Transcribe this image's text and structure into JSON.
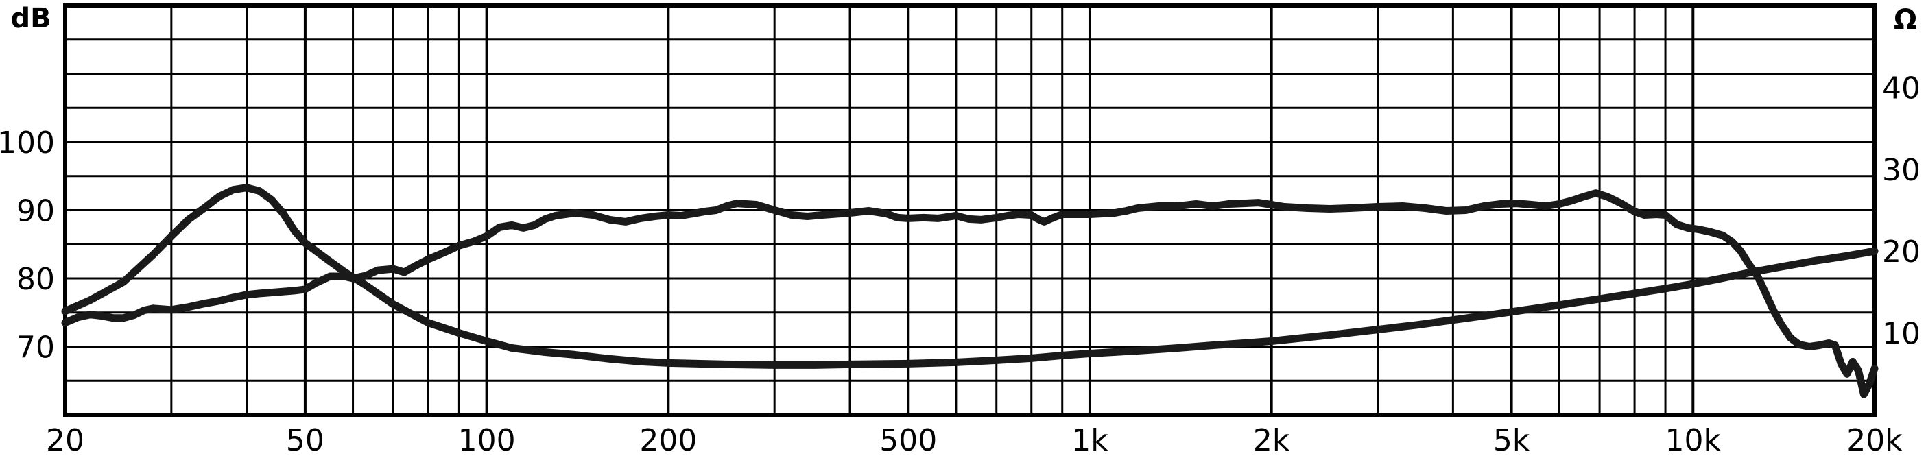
{
  "chart_data": {
    "type": "line",
    "title": "",
    "x_scale": "log",
    "xlim": [
      20,
      20000
    ],
    "ylim_left": [
      60,
      120
    ],
    "ylim_right": [
      0,
      50
    ],
    "ylabel_left": "dB",
    "ylabel_right": "Ω",
    "grid": true,
    "x_ticks": [
      {
        "value": 20,
        "label": "20"
      },
      {
        "value": 50,
        "label": "50"
      },
      {
        "value": 100,
        "label": "100"
      },
      {
        "value": 200,
        "label": "200"
      },
      {
        "value": 500,
        "label": "500"
      },
      {
        "value": 1000,
        "label": "1k"
      },
      {
        "value": 2000,
        "label": "2k"
      },
      {
        "value": 5000,
        "label": "5k"
      },
      {
        "value": 10000,
        "label": "10k"
      },
      {
        "value": 20000,
        "label": "20k"
      }
    ],
    "y_ticks_left": [
      {
        "value": 70,
        "label": "70"
      },
      {
        "value": 80,
        "label": "80"
      },
      {
        "value": 90,
        "label": "90"
      },
      {
        "value": 100,
        "label": "100"
      }
    ],
    "y_ticks_right": [
      {
        "value": 10,
        "label": "10"
      },
      {
        "value": 20,
        "label": "20"
      },
      {
        "value": 30,
        "label": "30"
      },
      {
        "value": 40,
        "label": "40"
      }
    ],
    "series": [
      {
        "axis": "left",
        "points": [
          [
            20,
            75.2
          ],
          [
            22,
            76.8
          ],
          [
            25,
            79.5
          ],
          [
            28,
            83.5
          ],
          [
            30,
            86.2
          ],
          [
            32,
            88.6
          ],
          [
            34,
            90.3
          ],
          [
            36,
            92.0
          ],
          [
            38,
            93.0
          ],
          [
            40,
            93.3
          ],
          [
            42,
            92.8
          ],
          [
            44,
            91.5
          ],
          [
            46,
            89.5
          ],
          [
            48,
            87.0
          ],
          [
            50,
            85.2
          ],
          [
            54,
            83.0
          ],
          [
            58,
            81.0
          ],
          [
            63,
            79.0
          ],
          [
            70,
            76.2
          ],
          [
            80,
            73.5
          ],
          [
            90,
            72.0
          ],
          [
            100,
            70.8
          ],
          [
            110,
            69.8
          ],
          [
            125,
            69.2
          ],
          [
            140,
            68.8
          ],
          [
            160,
            68.2
          ],
          [
            180,
            67.8
          ],
          [
            200,
            67.6
          ],
          [
            250,
            67.4
          ],
          [
            300,
            67.3
          ],
          [
            350,
            67.3
          ],
          [
            400,
            67.4
          ],
          [
            500,
            67.5
          ],
          [
            600,
            67.7
          ],
          [
            700,
            68.0
          ],
          [
            800,
            68.3
          ],
          [
            900,
            68.7
          ],
          [
            1000,
            69.0
          ],
          [
            1200,
            69.4
          ],
          [
            1400,
            69.8
          ],
          [
            1600,
            70.2
          ],
          [
            1800,
            70.5
          ],
          [
            2000,
            70.8
          ],
          [
            2500,
            71.7
          ],
          [
            3000,
            72.5
          ],
          [
            3500,
            73.2
          ],
          [
            4000,
            73.9
          ],
          [
            5000,
            75.1
          ],
          [
            6000,
            76.1
          ],
          [
            7000,
            77.0
          ],
          [
            8000,
            77.8
          ],
          [
            9000,
            78.5
          ],
          [
            10000,
            79.2
          ],
          [
            11000,
            79.9
          ],
          [
            12500,
            80.9
          ],
          [
            14000,
            81.7
          ],
          [
            16000,
            82.6
          ],
          [
            18000,
            83.3
          ],
          [
            20000,
            84.0
          ]
        ]
      },
      {
        "axis": "left",
        "points": [
          [
            20,
            73.5
          ],
          [
            21,
            74.3
          ],
          [
            22,
            74.7
          ],
          [
            23,
            74.5
          ],
          [
            24,
            74.2
          ],
          [
            25,
            74.2
          ],
          [
            26,
            74.6
          ],
          [
            27,
            75.3
          ],
          [
            28,
            75.6
          ],
          [
            30,
            75.4
          ],
          [
            32,
            75.8
          ],
          [
            34,
            76.3
          ],
          [
            36,
            76.7
          ],
          [
            38,
            77.2
          ],
          [
            40,
            77.6
          ],
          [
            42,
            77.8
          ],
          [
            45,
            78.0
          ],
          [
            48,
            78.2
          ],
          [
            50,
            78.4
          ],
          [
            52,
            79.3
          ],
          [
            55,
            80.3
          ],
          [
            58,
            80.3
          ],
          [
            60,
            80.0
          ],
          [
            63,
            80.4
          ],
          [
            66,
            81.2
          ],
          [
            70,
            81.4
          ],
          [
            73,
            80.9
          ],
          [
            76,
            81.8
          ],
          [
            80,
            82.8
          ],
          [
            85,
            83.8
          ],
          [
            90,
            84.8
          ],
          [
            95,
            85.4
          ],
          [
            100,
            86.2
          ],
          [
            105,
            87.5
          ],
          [
            110,
            87.8
          ],
          [
            115,
            87.4
          ],
          [
            120,
            87.8
          ],
          [
            125,
            88.7
          ],
          [
            130,
            89.2
          ],
          [
            140,
            89.6
          ],
          [
            150,
            89.3
          ],
          [
            160,
            88.6
          ],
          [
            170,
            88.3
          ],
          [
            180,
            88.8
          ],
          [
            190,
            89.1
          ],
          [
            200,
            89.3
          ],
          [
            210,
            89.2
          ],
          [
            220,
            89.5
          ],
          [
            230,
            89.8
          ],
          [
            240,
            90.0
          ],
          [
            250,
            90.6
          ],
          [
            260,
            91.0
          ],
          [
            280,
            90.8
          ],
          [
            300,
            90.0
          ],
          [
            320,
            89.3
          ],
          [
            340,
            89.1
          ],
          [
            360,
            89.3
          ],
          [
            400,
            89.6
          ],
          [
            430,
            89.9
          ],
          [
            460,
            89.5
          ],
          [
            480,
            88.9
          ],
          [
            500,
            88.8
          ],
          [
            530,
            88.9
          ],
          [
            560,
            88.8
          ],
          [
            600,
            89.2
          ],
          [
            630,
            88.7
          ],
          [
            660,
            88.6
          ],
          [
            700,
            88.9
          ],
          [
            730,
            89.2
          ],
          [
            760,
            89.4
          ],
          [
            800,
            89.3
          ],
          [
            820,
            88.7
          ],
          [
            840,
            88.3
          ],
          [
            870,
            88.9
          ],
          [
            900,
            89.4
          ],
          [
            950,
            89.4
          ],
          [
            1000,
            89.4
          ],
          [
            1050,
            89.5
          ],
          [
            1100,
            89.6
          ],
          [
            1150,
            89.9
          ],
          [
            1200,
            90.3
          ],
          [
            1300,
            90.6
          ],
          [
            1400,
            90.6
          ],
          [
            1500,
            90.9
          ],
          [
            1600,
            90.6
          ],
          [
            1700,
            90.9
          ],
          [
            1800,
            91.0
          ],
          [
            1900,
            91.1
          ],
          [
            2000,
            90.8
          ],
          [
            2100,
            90.5
          ],
          [
            2300,
            90.3
          ],
          [
            2500,
            90.2
          ],
          [
            2700,
            90.3
          ],
          [
            3000,
            90.5
          ],
          [
            3300,
            90.6
          ],
          [
            3600,
            90.3
          ],
          [
            3900,
            89.9
          ],
          [
            4200,
            90.0
          ],
          [
            4500,
            90.6
          ],
          [
            4800,
            90.9
          ],
          [
            5100,
            91.0
          ],
          [
            5400,
            90.8
          ],
          [
            5700,
            90.6
          ],
          [
            6000,
            90.9
          ],
          [
            6300,
            91.4
          ],
          [
            6600,
            92.0
          ],
          [
            6900,
            92.5
          ],
          [
            7200,
            92.0
          ],
          [
            7600,
            91.0
          ],
          [
            8000,
            89.8
          ],
          [
            8300,
            89.3
          ],
          [
            8700,
            89.4
          ],
          [
            9000,
            89.3
          ],
          [
            9400,
            87.9
          ],
          [
            9800,
            87.4
          ],
          [
            10200,
            87.2
          ],
          [
            10700,
            86.8
          ],
          [
            11200,
            86.3
          ],
          [
            11600,
            85.4
          ],
          [
            12000,
            84.0
          ],
          [
            12400,
            82.0
          ],
          [
            12800,
            80.3
          ],
          [
            13200,
            77.8
          ],
          [
            13600,
            75.3
          ],
          [
            14000,
            73.3
          ],
          [
            14500,
            71.3
          ],
          [
            15000,
            70.3
          ],
          [
            15600,
            70.0
          ],
          [
            16200,
            70.2
          ],
          [
            16800,
            70.5
          ],
          [
            17200,
            70.2
          ],
          [
            17600,
            67.5
          ],
          [
            18000,
            66.0
          ],
          [
            18400,
            67.8
          ],
          [
            18800,
            66.5
          ],
          [
            19200,
            63.0
          ],
          [
            19600,
            64.5
          ],
          [
            20000,
            66.8
          ]
        ]
      }
    ]
  }
}
